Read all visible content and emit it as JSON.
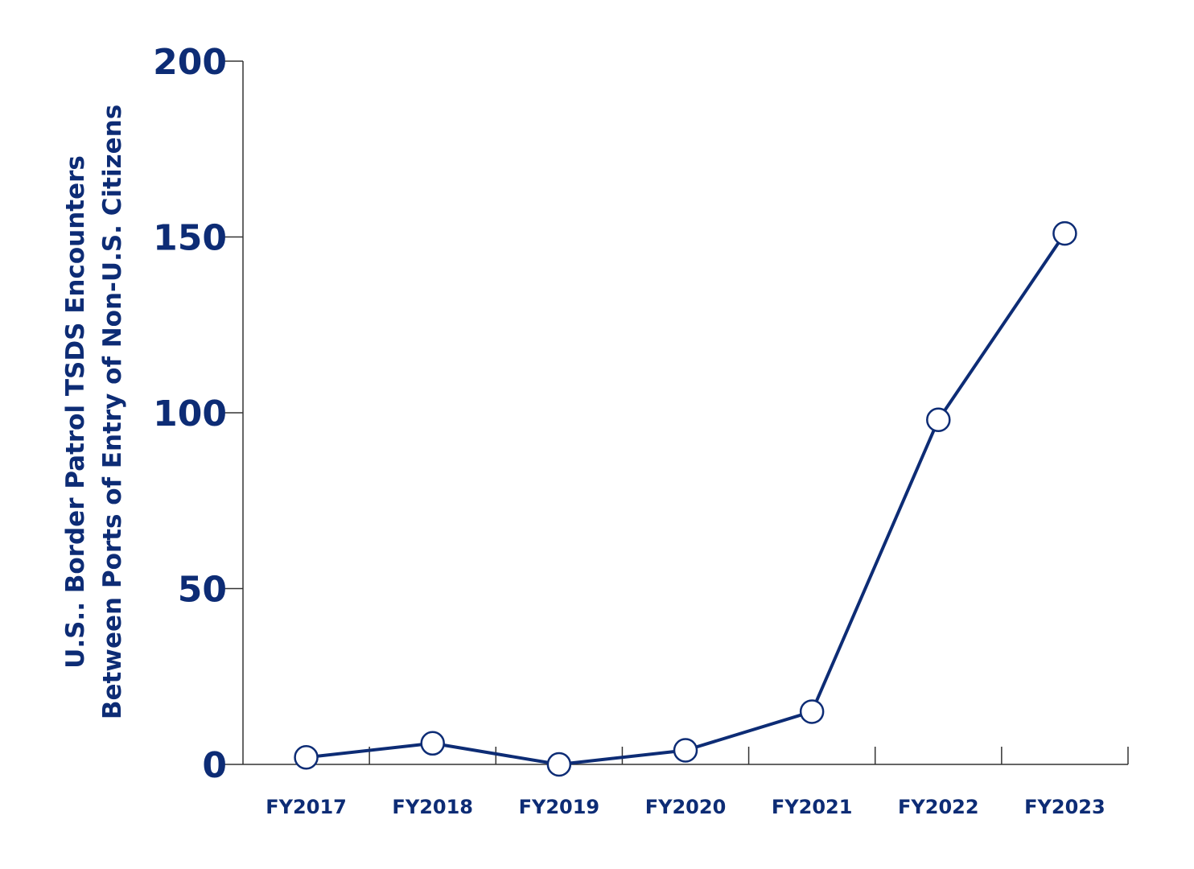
{
  "chart_data": {
    "type": "line",
    "title": "",
    "xlabel": "",
    "ylabel_lines": [
      "U.S.. Border Patrol TSDS Encounters",
      "Between Ports of Entry of Non-U.S. Citizens"
    ],
    "categories": [
      "FY2017",
      "FY2018",
      "FY2019",
      "FY2020",
      "FY2021",
      "FY2022",
      "FY2023"
    ],
    "series": [
      {
        "values": [
          2,
          6,
          0,
          4,
          15,
          98,
          151
        ]
      }
    ],
    "ylim": [
      0,
      200
    ],
    "yticks": [
      "0",
      "50",
      "100",
      "150",
      "200"
    ],
    "grid": false,
    "legend": "none",
    "colors": {
      "line": "#0d2c75",
      "axis": "#333333",
      "text": "#0d2c75",
      "marker_fill": "#ffffff"
    }
  }
}
